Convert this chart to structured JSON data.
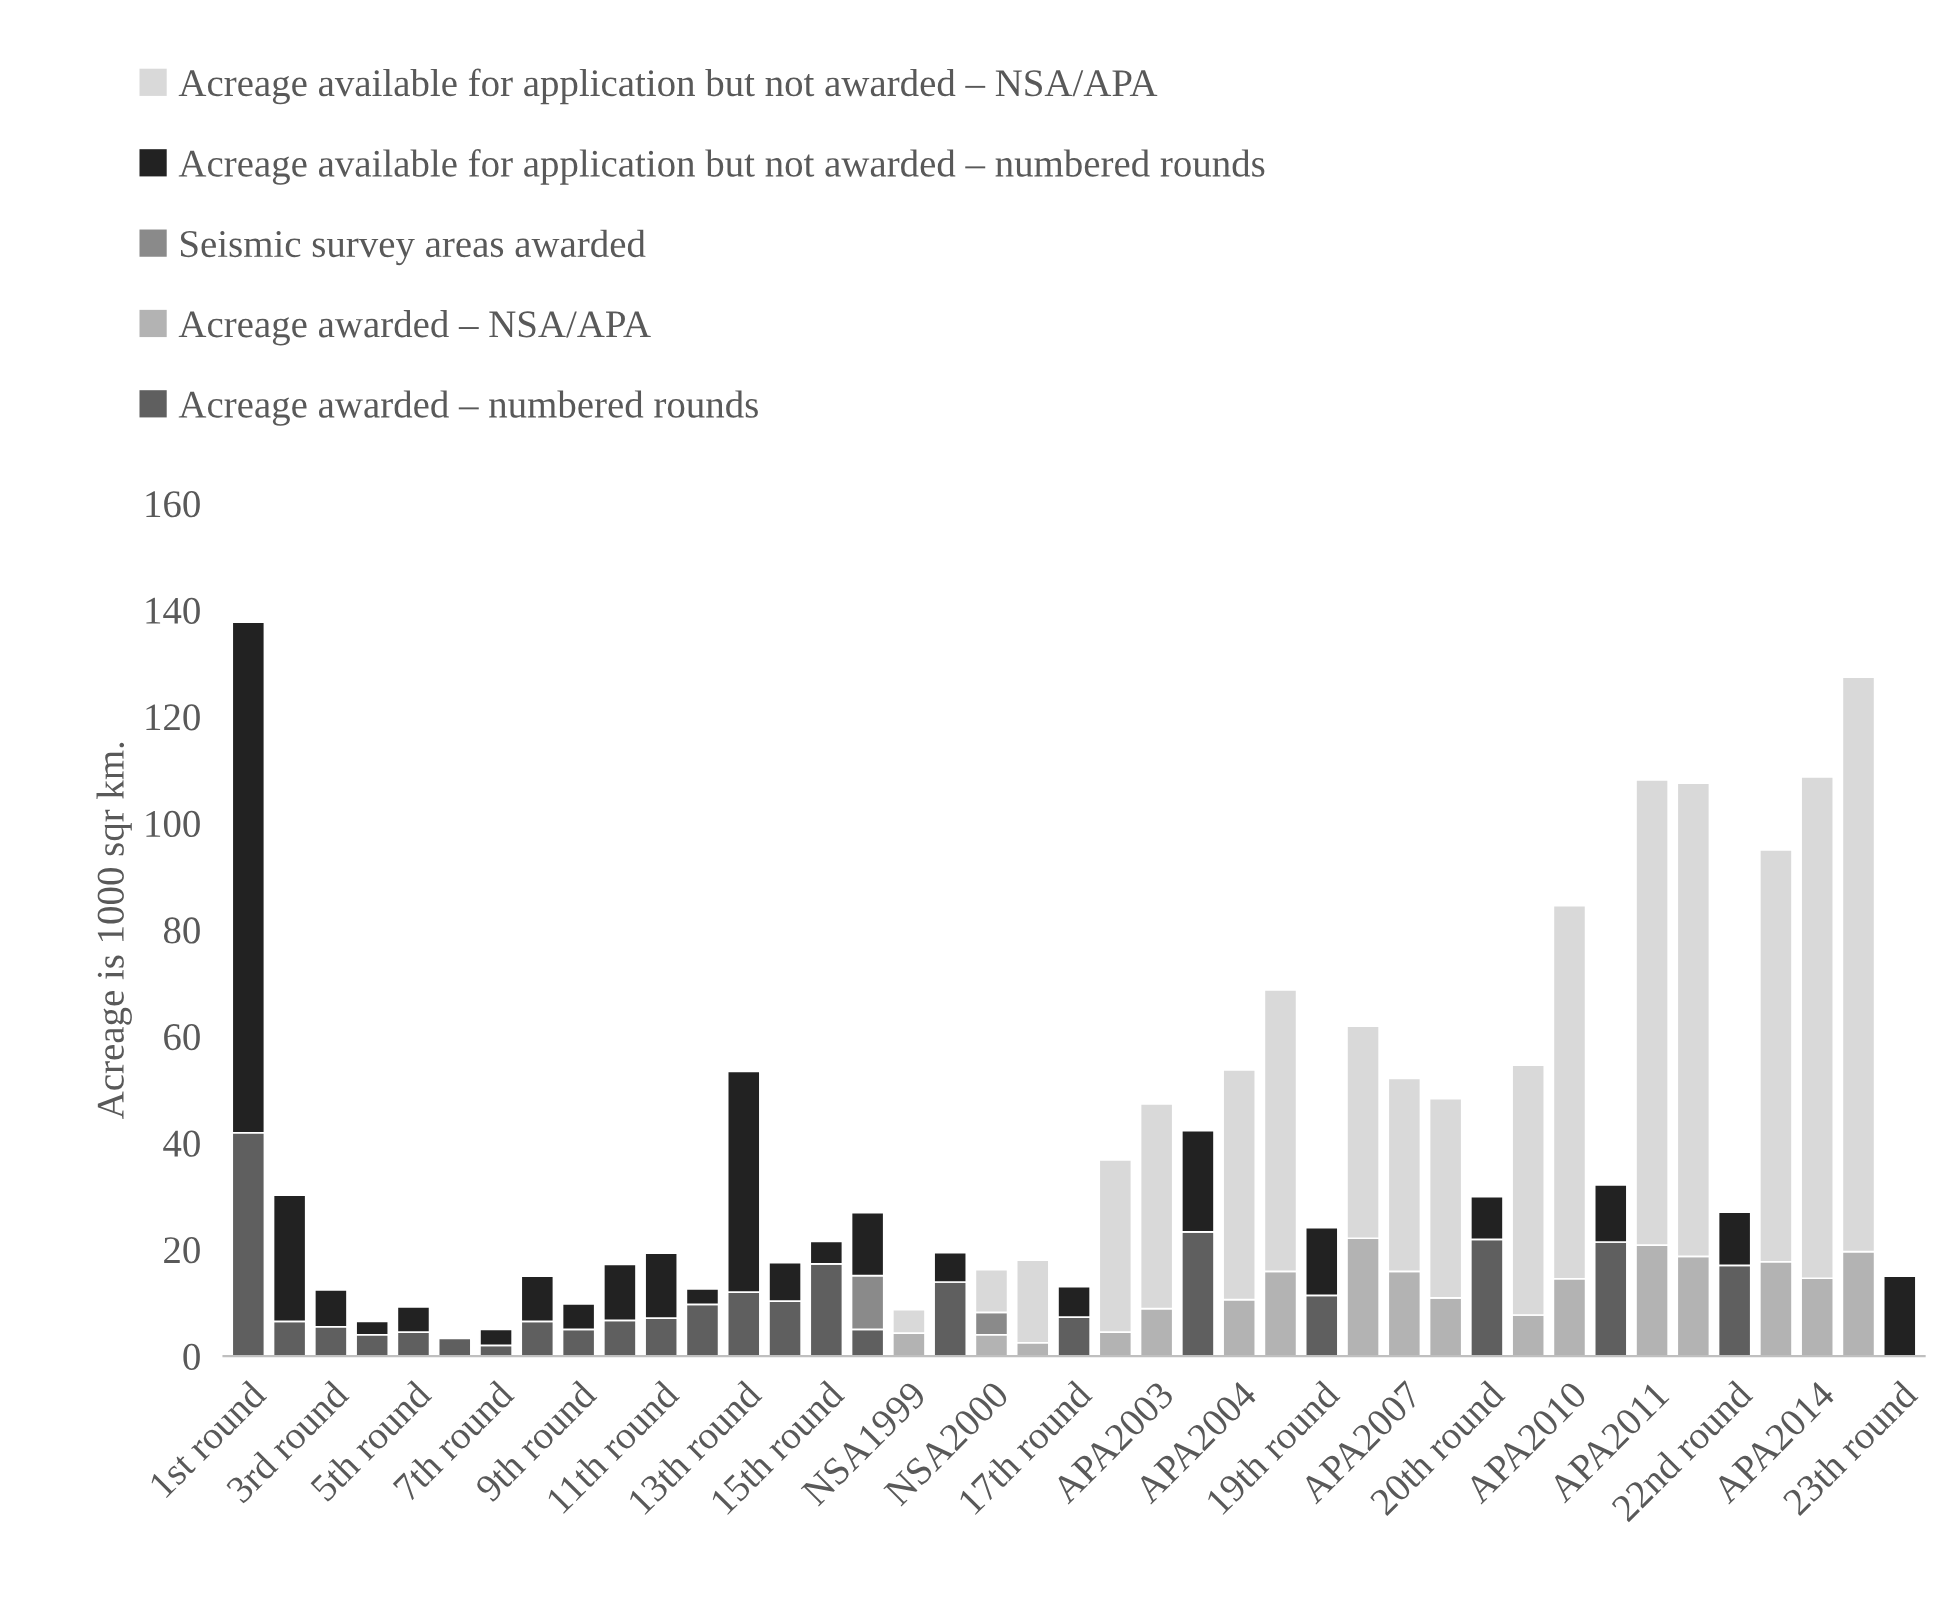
{
  "chart_data": {
    "type": "bar",
    "stacked": true,
    "ylabel": "Acreage is 1000 sqr km.",
    "ylim": [
      0,
      160
    ],
    "yticks": [
      0,
      20,
      40,
      60,
      80,
      100,
      120,
      140,
      160
    ],
    "grid": false,
    "legend": "top",
    "categories": [
      "1st round",
      null,
      "3rd round",
      null,
      "5th round",
      null,
      "7th round",
      null,
      "9th round",
      null,
      "11th round",
      null,
      "13th round",
      null,
      "15th round",
      null,
      "NSA1999",
      null,
      "NSA2000",
      null,
      "17th round",
      null,
      "APA2003",
      null,
      "APA2004",
      null,
      "19th round",
      null,
      "APA2007",
      null,
      "20th round",
      null,
      "APA2010",
      null,
      "APA2011",
      null,
      "22nd round",
      null,
      "APA2014",
      null,
      "23th round"
    ],
    "series": [
      {
        "name": "Acreage awarded – numbered rounds",
        "color": "#5f5f5f",
        "values": [
          41.9,
          6.5,
          5.5,
          4,
          4.5,
          3.3,
          2,
          6.5,
          5,
          6.7,
          7.1,
          9.7,
          12,
          10.3,
          17.3,
          5,
          null,
          13.9,
          null,
          null,
          7.3,
          null,
          null,
          23.3,
          null,
          null,
          11.4,
          null,
          null,
          null,
          21.9,
          null,
          null,
          21.4,
          null,
          null,
          17,
          null,
          null,
          null,
          null
        ]
      },
      {
        "name": "Acreage awarded – NSA/APA",
        "color": "#b3b3b3",
        "values": [
          null,
          null,
          null,
          null,
          null,
          null,
          null,
          null,
          null,
          null,
          null,
          null,
          null,
          null,
          null,
          null,
          4.3,
          null,
          4,
          2.5,
          null,
          4.5,
          8.9,
          null,
          10.6,
          15.9,
          null,
          22.1,
          15.9,
          10.9,
          null,
          7.7,
          14.5,
          null,
          20.8,
          18.7,
          null,
          17.7,
          14.6,
          19.6,
          null
        ]
      },
      {
        "name": "Seismic survey areas awarded",
        "color": "#8a8a8a",
        "values": [
          null,
          null,
          null,
          null,
          null,
          null,
          null,
          null,
          null,
          null,
          null,
          null,
          null,
          null,
          null,
          10.1,
          null,
          null,
          4.2,
          null,
          null,
          null,
          null,
          null,
          null,
          null,
          null,
          null,
          null,
          null,
          null,
          null,
          null,
          null,
          null,
          null,
          null,
          null,
          null,
          null,
          null
        ]
      },
      {
        "name": "Acreage available for application but not awarded – numbered rounds",
        "color": "#222222",
        "values": [
          95.8,
          23.7,
          6.9,
          2.5,
          4.7,
          null,
          3,
          8.5,
          4.8,
          10.5,
          12.2,
          2.9,
          41.4,
          7.2,
          4.2,
          11.8,
          null,
          5.5,
          null,
          null,
          5.7,
          null,
          null,
          19,
          null,
          null,
          12.7,
          null,
          null,
          null,
          8,
          null,
          null,
          10.7,
          null,
          null,
          10,
          null,
          null,
          null,
          15
        ]
      },
      {
        "name": "Acreage available for application but not awarded – NSA/APA",
        "color": "#d9d9d9",
        "values": [
          null,
          null,
          null,
          null,
          null,
          null,
          null,
          null,
          null,
          null,
          null,
          null,
          null,
          null,
          null,
          null,
          4.4,
          null,
          8,
          15.5,
          null,
          32.3,
          38.4,
          null,
          43.1,
          52.8,
          null,
          39.8,
          36.2,
          37.4,
          null,
          46.9,
          70,
          null,
          87.3,
          88.8,
          null,
          77.3,
          94.1,
          107.8,
          null
        ]
      }
    ]
  }
}
